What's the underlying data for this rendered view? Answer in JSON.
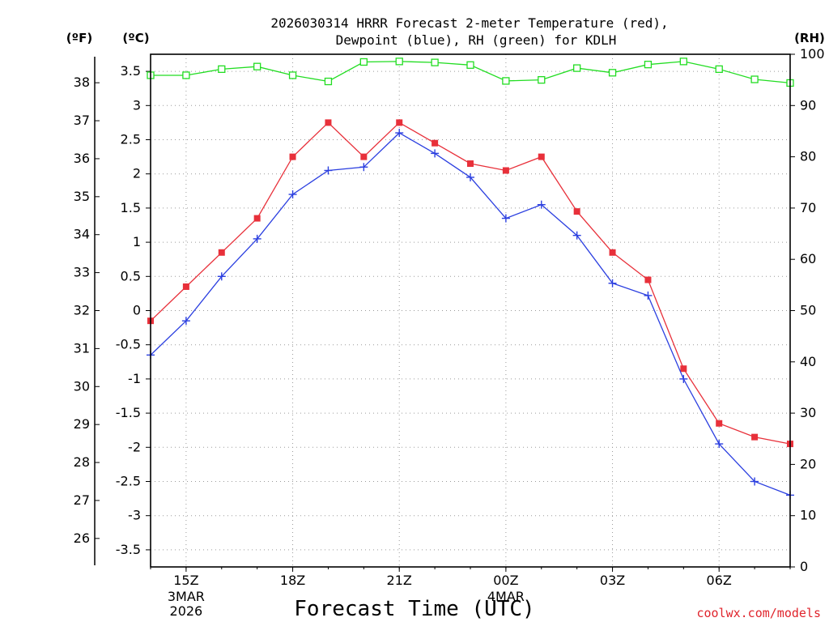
{
  "header": {
    "title_line1": "2026030314 HRRR Forecast 2-meter Temperature (red),",
    "title_line2": "Dewpoint (blue), RH (green) for KDLH"
  },
  "axes": {
    "left_f_unit": "(ºF)",
    "left_c_unit": "(ºC)",
    "right_unit": "(RH)",
    "xlabel": "Forecast Time (UTC)",
    "date_labels": [
      {
        "index": 1,
        "lines": [
          "3MAR",
          "2026"
        ]
      },
      {
        "index": 10,
        "lines": [
          "4MAR"
        ]
      }
    ]
  },
  "footer": {
    "credit": "coolwx.com/models"
  },
  "colors": {
    "temperature": "#e8303a",
    "dewpoint": "#2b3fe0",
    "rh": "#22dd22"
  },
  "chart_data": {
    "type": "line",
    "title": "2026030314 HRRR Forecast 2-meter Temperature (red), Dewpoint (blue), RH (green) for KDLH",
    "xlabel": "Forecast Time (UTC)",
    "x_range": [
      14,
      32
    ],
    "x_ticks": [
      {
        "hour": 15,
        "label": "15Z"
      },
      {
        "hour": 18,
        "label": "18Z"
      },
      {
        "hour": 21,
        "label": "21Z"
      },
      {
        "hour": 24,
        "label": "00Z"
      },
      {
        "hour": 27,
        "label": "03Z"
      },
      {
        "hour": 30,
        "label": "06Z"
      }
    ],
    "y_celsius": {
      "range": [
        -3.75,
        3.75
      ],
      "ticks": [
        3.5,
        3,
        2.5,
        2,
        1.5,
        1,
        0.5,
        0,
        -0.5,
        -1,
        -1.5,
        -2,
        -2.5,
        -3,
        -3.5
      ]
    },
    "y_fahrenheit": {
      "ticks": [
        38,
        37,
        36,
        35,
        34,
        33,
        32,
        31,
        30,
        29,
        28,
        27,
        26
      ]
    },
    "y_rh": {
      "range": [
        0,
        100
      ],
      "ticks": [
        100,
        90,
        80,
        70,
        60,
        50,
        40,
        30,
        20,
        10,
        0
      ]
    },
    "hours": [
      14,
      15,
      16,
      17,
      18,
      19,
      20,
      21,
      22,
      23,
      24,
      25,
      26,
      27,
      28,
      29,
      30,
      31,
      32
    ],
    "series": [
      {
        "name": "Temperature",
        "unit": "C",
        "marker": "square-filled",
        "values": [
          -0.15,
          0.35,
          0.85,
          1.35,
          2.25,
          2.75,
          2.25,
          2.75,
          2.45,
          2.15,
          2.05,
          2.25,
          1.45,
          0.85,
          0.45,
          -0.85,
          -1.65,
          -1.85,
          -1.95
        ]
      },
      {
        "name": "Dewpoint",
        "unit": "C",
        "marker": "plus",
        "values": [
          -0.65,
          -0.15,
          0.5,
          1.05,
          1.7,
          2.05,
          2.1,
          2.6,
          2.3,
          1.95,
          1.35,
          1.55,
          1.1,
          0.4,
          0.22,
          -1.0,
          -1.95,
          -2.5,
          -2.7
        ]
      },
      {
        "name": "RH",
        "unit": "%",
        "marker": "square-open",
        "values": [
          95.9,
          95.9,
          97.1,
          97.6,
          95.9,
          94.7,
          98.5,
          98.6,
          98.4,
          97.9,
          94.8,
          95.0,
          97.3,
          96.4,
          98.0,
          98.6,
          97.1,
          95.1,
          94.4
        ]
      }
    ]
  }
}
